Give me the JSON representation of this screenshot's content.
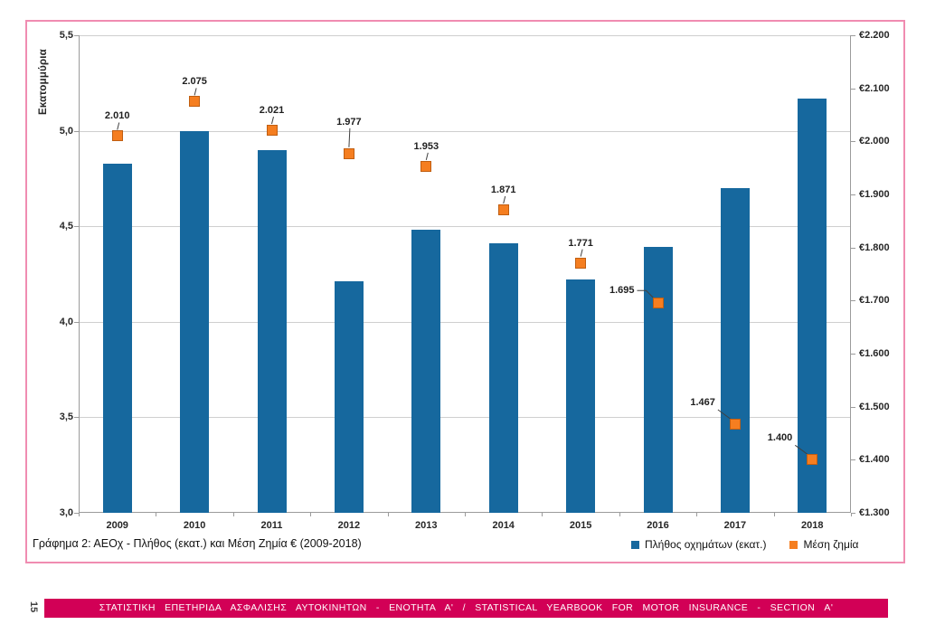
{
  "page": {
    "page_number": "15"
  },
  "caption": "Γράφημα 2: ΑΕΟχ - Πλήθος (εκατ.) και Μέση Ζημία € (2009-2018)",
  "footer": {
    "banner_text": "ΣΤΑΤΙΣΤΙΚΗ ΕΠΕΤΗΡΙΔΑ ΑΣΦΑΛΙΣΗΣ ΑΥΤΟΚΙΝΗΤΩΝ - ΕΝΟΤΗΤΑ Α' / STATISTICAL YEARBOOK FOR MOTOR INSURANCE - SECTION Α'"
  },
  "colors": {
    "bar_blue": "#16689E",
    "marker_orange": "#F57E20",
    "frame_pink": "#F08CB1",
    "banner_magenta": "#D20056",
    "gridline_gray": "#CFCFCF",
    "axis_gray": "#9B9B9B"
  },
  "chart_data": {
    "type": "bar",
    "combo_secondary_type": "scatter",
    "title": "",
    "categories": [
      "2009",
      "2010",
      "2011",
      "2012",
      "2013",
      "2014",
      "2015",
      "2016",
      "2017",
      "2018"
    ],
    "series": [
      {
        "name": "Πλήθος οχημάτων (εκατ.)",
        "type": "bar",
        "axis": "left",
        "color": "#16689E",
        "values": [
          4.83,
          5.0,
          4.9,
          4.21,
          4.48,
          4.41,
          4.22,
          4.39,
          4.7,
          5.17
        ]
      },
      {
        "name": "Μέση ζημία",
        "type": "scatter",
        "axis": "right",
        "color": "#F57E20",
        "values": [
          2010,
          2075,
          2021,
          1977,
          1953,
          1871,
          1771,
          1695,
          1467,
          1400
        ],
        "point_labels": [
          "2.010",
          "2.075",
          "2.021",
          "1.977",
          "1.953",
          "1.871",
          "1.771",
          "1.695",
          "1.467",
          "1.400"
        ],
        "label_pos": [
          "above",
          "above",
          "above",
          "above-high",
          "above",
          "above",
          "above",
          "left",
          "left-up",
          "left-up"
        ]
      }
    ],
    "left_axis": {
      "title": "Εκατομμύρια",
      "min": 3.0,
      "max": 5.5,
      "step": 0.5,
      "tick_labels": [
        "5,5",
        "5,0",
        "4,5",
        "4,0",
        "3,5",
        "3,0"
      ]
    },
    "right_axis": {
      "title": "",
      "min": 1300,
      "max": 2200,
      "step": 100,
      "tick_labels": [
        "€2.200",
        "€2.100",
        "€2.000",
        "€1.900",
        "€1.800",
        "€1.700",
        "€1.600",
        "€1.500",
        "€1.400",
        "€1.300"
      ]
    },
    "grid": true,
    "legend_position": "bottom-right",
    "legend": [
      {
        "label": "Πλήθος οχημάτων (εκατ.)",
        "color": "#16689E"
      },
      {
        "label": "Μέση ζημία",
        "color": "#F57E20"
      }
    ]
  }
}
